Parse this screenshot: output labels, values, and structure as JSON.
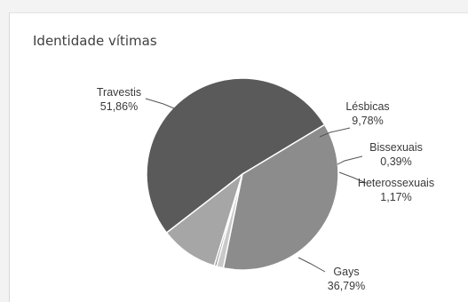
{
  "chart_data": {
    "type": "pie",
    "title": "Identidade vítimas",
    "slices": [
      {
        "label": "Travestis",
        "value": 51.86,
        "display": "51,86%",
        "color": "#5a5a5a"
      },
      {
        "label": "Lésbicas",
        "value": 9.78,
        "display": "9,78%",
        "color": "#a6a6a6"
      },
      {
        "label": "Bissexuais",
        "value": 0.39,
        "display": "0,39%",
        "color": "#7f7f7f"
      },
      {
        "label": "Heterossexuais",
        "value": 1.17,
        "display": "1,17%",
        "color": "#c9c9c9"
      },
      {
        "label": "Gays",
        "value": 36.79,
        "display": "36,79%",
        "color": "#8c8c8c"
      }
    ],
    "legend": "none"
  }
}
